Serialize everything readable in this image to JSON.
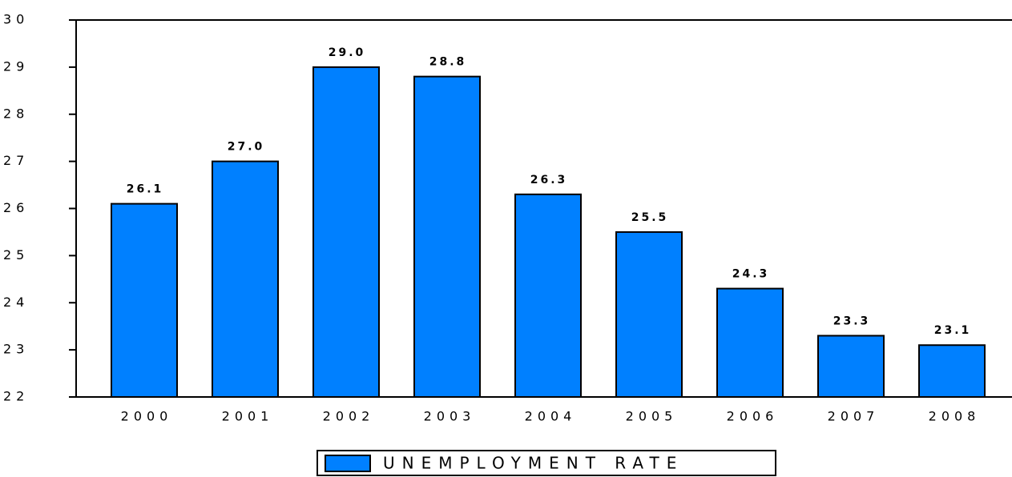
{
  "chart_data": {
    "type": "bar",
    "categories": [
      "2000",
      "2001",
      "2002",
      "2003",
      "2004",
      "2005",
      "2006",
      "2007",
      "2008"
    ],
    "series": [
      {
        "name": "UNEMPLOYMENT RATE",
        "color": "#0080ff",
        "values": [
          26.1,
          27.0,
          29.0,
          28.8,
          26.3,
          25.5,
          24.3,
          23.3,
          23.1
        ],
        "value_labels": [
          "26.1",
          "27.0",
          "29.0",
          "28.8",
          "26.3",
          "25.5",
          "24.3",
          "23.3",
          "23.1"
        ]
      }
    ],
    "ylim": [
      22,
      30
    ],
    "yticks": [
      22,
      23,
      24,
      25,
      26,
      27,
      28,
      29,
      30
    ],
    "grid": false,
    "legend": "bottom"
  }
}
